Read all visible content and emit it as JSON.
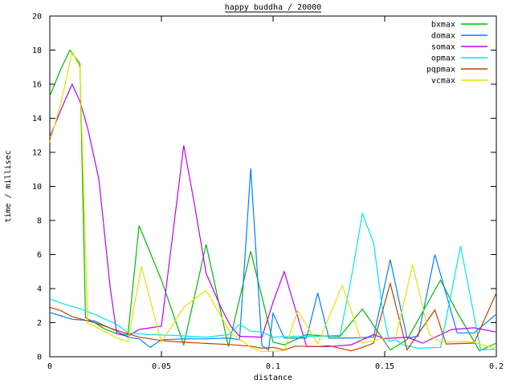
{
  "title": "happy buddha / 20000",
  "chart_data": {
    "type": "line",
    "title": "happy buddha / 20000",
    "xlabel": "distance",
    "ylabel": "time / millisec",
    "xlim": [
      0,
      0.2
    ],
    "ylim": [
      0,
      20
    ],
    "x_ticks": [
      0,
      0.05,
      0.1,
      0.15,
      0.2
    ],
    "x_tick_labels": [
      "0",
      "0.05",
      "0.1",
      "0.15",
      "0.2"
    ],
    "y_ticks": [
      0,
      2,
      4,
      6,
      8,
      10,
      12,
      14,
      16,
      18,
      20
    ],
    "y_tick_labels": [
      "0",
      "2",
      "4",
      "6",
      "8",
      "10",
      "12",
      "14",
      "16",
      "18",
      "20"
    ],
    "grid": false,
    "legend_position": "top-right-inside",
    "frame_color": "#000000",
    "background": "#ffffff",
    "series": [
      {
        "name": "bxmax",
        "color": "#00bb00",
        "points": [
          [
            0,
            15.3
          ],
          [
            0.005,
            16.9
          ],
          [
            0.009,
            18.0
          ],
          [
            0.0135,
            17.2
          ],
          [
            0.016,
            2.3
          ],
          [
            0.02,
            2.0
          ],
          [
            0.025,
            1.6
          ],
          [
            0.03,
            1.35
          ],
          [
            0.035,
            1.3
          ],
          [
            0.04,
            7.7
          ],
          [
            0.045,
            6.1
          ],
          [
            0.05,
            4.5
          ],
          [
            0.06,
            0.7
          ],
          [
            0.07,
            6.6
          ],
          [
            0.08,
            0.6
          ],
          [
            0.09,
            6.2
          ],
          [
            0.1,
            0.85
          ],
          [
            0.105,
            0.7
          ],
          [
            0.115,
            1.3
          ],
          [
            0.125,
            1.2
          ],
          [
            0.13,
            1.2
          ],
          [
            0.14,
            2.8
          ],
          [
            0.1525,
            0.4
          ],
          [
            0.16,
            1.0
          ],
          [
            0.175,
            4.5
          ],
          [
            0.1825,
            2.6
          ],
          [
            0.1925,
            0.35
          ],
          [
            0.2,
            0.8
          ]
        ]
      },
      {
        "name": "domax",
        "color": "#0080ff",
        "points": [
          [
            0,
            2.6
          ],
          [
            0.005,
            2.4
          ],
          [
            0.01,
            2.2
          ],
          [
            0.02,
            2.1
          ],
          [
            0.03,
            1.5
          ],
          [
            0.035,
            1.15
          ],
          [
            0.04,
            1.05
          ],
          [
            0.045,
            0.55
          ],
          [
            0.05,
            1.0
          ],
          [
            0.06,
            1.05
          ],
          [
            0.07,
            1.05
          ],
          [
            0.08,
            1.1
          ],
          [
            0.085,
            1.0
          ],
          [
            0.09,
            11.05
          ],
          [
            0.095,
            0.65
          ],
          [
            0.098,
            0.4
          ],
          [
            0.1,
            2.55
          ],
          [
            0.105,
            1.1
          ],
          [
            0.115,
            1.1
          ],
          [
            0.12,
            3.75
          ],
          [
            0.125,
            1.1
          ],
          [
            0.135,
            1.1
          ],
          [
            0.145,
            1.15
          ],
          [
            0.1525,
            5.7
          ],
          [
            0.16,
            1.1
          ],
          [
            0.165,
            1.2
          ],
          [
            0.1725,
            6.0
          ],
          [
            0.1825,
            1.4
          ],
          [
            0.19,
            1.4
          ],
          [
            0.2,
            2.5
          ]
        ]
      },
      {
        "name": "somax",
        "color": "#bb00ff",
        "points": [
          [
            0,
            12.9
          ],
          [
            0.005,
            14.5
          ],
          [
            0.01,
            16.0
          ],
          [
            0.0135,
            15.0
          ],
          [
            0.017,
            13.4
          ],
          [
            0.022,
            10.4
          ],
          [
            0.027,
            4.1
          ],
          [
            0.03,
            1.35
          ],
          [
            0.035,
            1.2
          ],
          [
            0.04,
            1.6
          ],
          [
            0.05,
            1.8
          ],
          [
            0.06,
            12.4
          ],
          [
            0.065,
            8.8
          ],
          [
            0.07,
            4.9
          ],
          [
            0.077,
            2.8
          ],
          [
            0.081,
            1.8
          ],
          [
            0.085,
            1.2
          ],
          [
            0.095,
            1.15
          ],
          [
            0.1,
            3.2
          ],
          [
            0.105,
            5.0
          ],
          [
            0.115,
            0.6
          ],
          [
            0.125,
            0.6
          ],
          [
            0.135,
            0.7
          ],
          [
            0.145,
            1.3
          ],
          [
            0.15,
            1.05
          ],
          [
            0.155,
            1.1
          ],
          [
            0.16,
            1.15
          ],
          [
            0.167,
            0.8
          ],
          [
            0.18,
            1.6
          ],
          [
            0.19,
            1.7
          ],
          [
            0.2,
            1.45
          ]
        ]
      },
      {
        "name": "opmax",
        "color": "#00e7e7",
        "points": [
          [
            0,
            3.4
          ],
          [
            0.005,
            3.15
          ],
          [
            0.01,
            2.95
          ],
          [
            0.015,
            2.75
          ],
          [
            0.02,
            2.5
          ],
          [
            0.025,
            2.2
          ],
          [
            0.03,
            1.9
          ],
          [
            0.035,
            1.4
          ],
          [
            0.045,
            1.3
          ],
          [
            0.055,
            1.25
          ],
          [
            0.07,
            1.15
          ],
          [
            0.08,
            1.3
          ],
          [
            0.085,
            1.9
          ],
          [
            0.09,
            1.5
          ],
          [
            0.095,
            1.45
          ],
          [
            0.1,
            1.15
          ],
          [
            0.11,
            1.2
          ],
          [
            0.12,
            1.2
          ],
          [
            0.13,
            1.25
          ],
          [
            0.135,
            4.6
          ],
          [
            0.14,
            8.4
          ],
          [
            0.145,
            6.7
          ],
          [
            0.149,
            2.8
          ],
          [
            0.152,
            0.9
          ],
          [
            0.155,
            1.0
          ],
          [
            0.158,
            0.7
          ],
          [
            0.165,
            0.5
          ],
          [
            0.175,
            0.55
          ],
          [
            0.184,
            6.5
          ],
          [
            0.193,
            0.4
          ],
          [
            0.2,
            0.45
          ]
        ]
      },
      {
        "name": "pqpmax",
        "color": "#c04000",
        "points": [
          [
            0,
            2.9
          ],
          [
            0.005,
            2.7
          ],
          [
            0.01,
            2.35
          ],
          [
            0.02,
            2.0
          ],
          [
            0.03,
            1.55
          ],
          [
            0.04,
            1.15
          ],
          [
            0.05,
            0.95
          ],
          [
            0.06,
            0.85
          ],
          [
            0.07,
            0.78
          ],
          [
            0.08,
            0.72
          ],
          [
            0.09,
            0.62
          ],
          [
            0.095,
            0.5
          ],
          [
            0.1,
            0.55
          ],
          [
            0.105,
            0.4
          ],
          [
            0.11,
            0.62
          ],
          [
            0.12,
            0.6
          ],
          [
            0.125,
            0.65
          ],
          [
            0.13,
            0.5
          ],
          [
            0.135,
            0.35
          ],
          [
            0.14,
            0.55
          ],
          [
            0.145,
            0.8
          ],
          [
            0.1525,
            4.3
          ],
          [
            0.16,
            0.4
          ],
          [
            0.1725,
            2.75
          ],
          [
            0.1775,
            0.75
          ],
          [
            0.19,
            0.8
          ],
          [
            0.2,
            3.75
          ]
        ]
      },
      {
        "name": "vcmax",
        "color": "#e3e300",
        "points": [
          [
            0,
            12.6
          ],
          [
            0.005,
            14.9
          ],
          [
            0.01,
            17.9
          ],
          [
            0.0135,
            17.0
          ],
          [
            0.017,
            1.95
          ],
          [
            0.02,
            1.8
          ],
          [
            0.03,
            1.1
          ],
          [
            0.035,
            0.9
          ],
          [
            0.041,
            5.3
          ],
          [
            0.05,
            0.85
          ],
          [
            0.06,
            2.9
          ],
          [
            0.07,
            3.9
          ],
          [
            0.081,
            1.4
          ],
          [
            0.09,
            0.55
          ],
          [
            0.095,
            0.3
          ],
          [
            0.105,
            0.35
          ],
          [
            0.111,
            2.7
          ],
          [
            0.12,
            0.75
          ],
          [
            0.131,
            4.2
          ],
          [
            0.14,
            0.8
          ],
          [
            0.15,
            1.1
          ],
          [
            0.155,
            1.15
          ],
          [
            0.1625,
            5.4
          ],
          [
            0.17,
            1.3
          ],
          [
            0.175,
            0.85
          ],
          [
            0.185,
            0.9
          ],
          [
            0.19,
            0.85
          ],
          [
            0.2,
            0.45
          ]
        ]
      }
    ]
  }
}
